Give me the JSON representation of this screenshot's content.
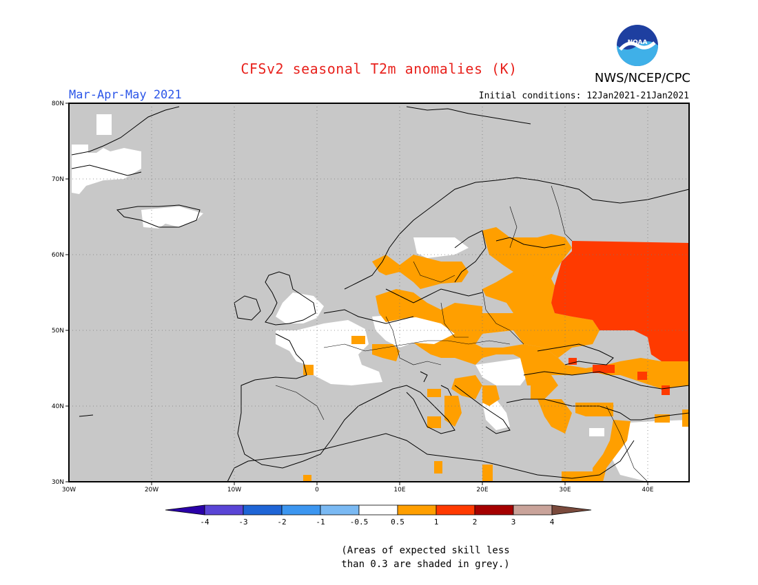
{
  "header": {
    "title": "CFSv2 seasonal T2m anomalies (K)",
    "season": "Mar-Apr-May 2021",
    "agency": "NWS/NCEP/CPC",
    "initial_conditions": "Initial conditions: 12Jan2021-21Jan2021",
    "logo_text": "NOAA"
  },
  "axes": {
    "lon_ticks": [
      "30W",
      "20W",
      "10W",
      "0",
      "10E",
      "20E",
      "30E",
      "40E"
    ],
    "lat_ticks": [
      "80N",
      "70N",
      "60N",
      "50N",
      "40N",
      "30N"
    ]
  },
  "colorbar": {
    "labels": [
      "-4",
      "-3",
      "-2",
      "-1",
      "-0.5",
      "0.5",
      "1",
      "2",
      "3",
      "4"
    ],
    "colors": {
      "below_-4": "#2a00a8",
      "-4_-3": "#5a45d6",
      "-3_-2": "#1f65d6",
      "-2_-1": "#3c96f0",
      "-1_-0.5": "#7ab9f3",
      "-0.5_0.5": "#ffffff",
      "0.5_1": "#ff9f00",
      "1_2": "#ff3a00",
      "2_3": "#a50000",
      "3_4": "#c9a39a",
      "above_4": "#7a4a3c"
    }
  },
  "colors": {
    "skill_grey": "#c8c8c8",
    "anomaly_0.5_1": "#ff9f00",
    "anomaly_1_2": "#ff3a00",
    "neutral": "#ffffff"
  },
  "note": {
    "line1": "(Areas of expected skill less",
    "line2": "than 0.3 are shaded in grey.)"
  }
}
